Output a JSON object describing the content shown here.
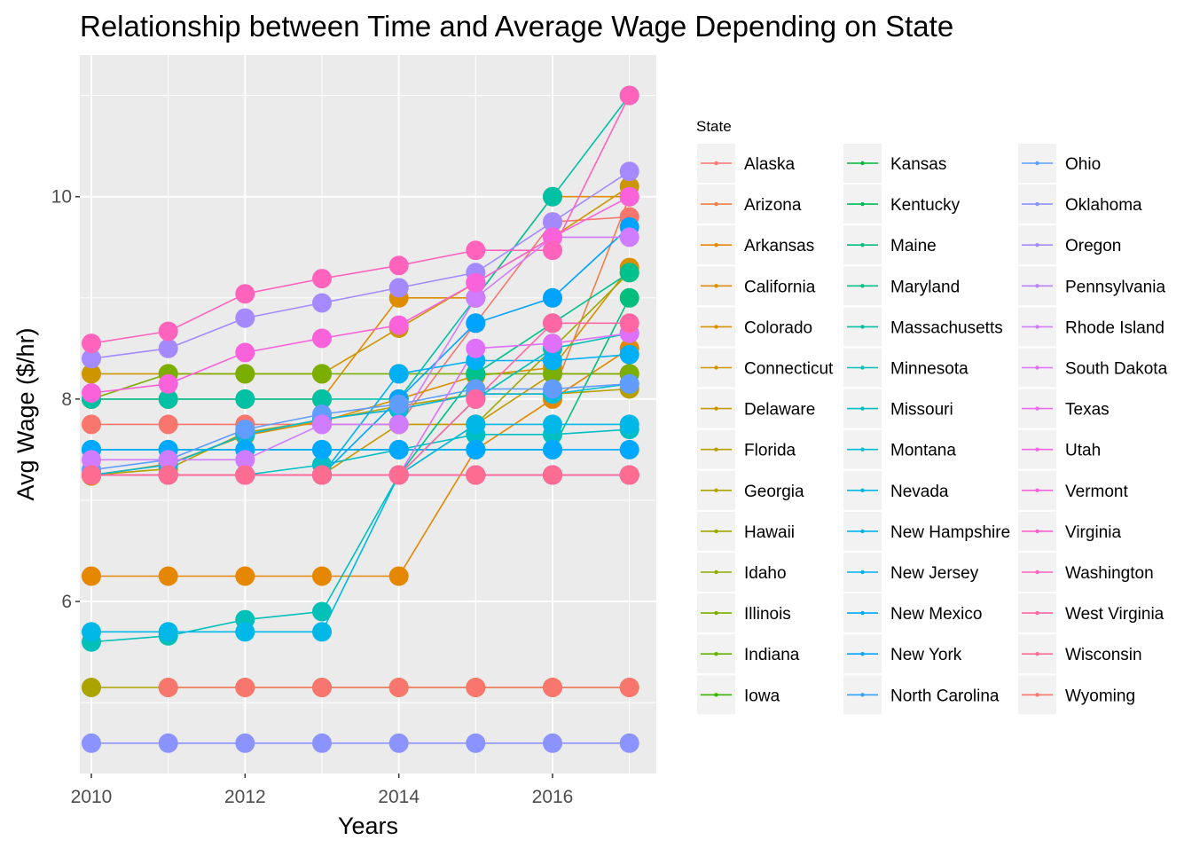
{
  "chart_data": {
    "type": "line",
    "title": "Relationship between Time and Average Wage Depending on State",
    "xlabel": "Years",
    "ylabel": "Avg Wage ($/hr)",
    "xlim": [
      2009.85,
      2017.35
    ],
    "ylim": [
      4.3,
      11.4
    ],
    "x_ticks": [
      2010,
      2012,
      2014,
      2016
    ],
    "y_ticks": [
      6,
      8,
      10
    ],
    "grid": true,
    "legend_title": "State",
    "legend_position": "right",
    "x": [
      2010,
      2011,
      2012,
      2013,
      2014,
      2015,
      2016,
      2017
    ],
    "series": [
      {
        "name": "Alaska",
        "color": "#F8766D",
        "values": [
          7.75,
          7.75,
          7.75,
          7.75,
          7.75,
          8.75,
          9.75,
          9.8
        ]
      },
      {
        "name": "Arizona",
        "color": "#EF7F49",
        "values": [
          7.25,
          7.35,
          7.65,
          7.8,
          7.9,
          8.05,
          8.05,
          10.0
        ]
      },
      {
        "name": "Arkansas",
        "color": "#E58700",
        "values": [
          6.25,
          6.25,
          6.25,
          6.25,
          6.25,
          7.5,
          8.0,
          8.5
        ]
      },
      {
        "name": "California",
        "color": "#DE8C00",
        "values": [
          8.0,
          8.0,
          8.0,
          8.0,
          9.0,
          9.0,
          10.0,
          10.0
        ]
      },
      {
        "name": "Colorado",
        "color": "#D89000",
        "values": [
          7.24,
          7.36,
          7.64,
          7.78,
          8.0,
          8.23,
          8.31,
          9.3
        ]
      },
      {
        "name": "Connecticut",
        "color": "#CD9600",
        "values": [
          8.25,
          8.25,
          8.25,
          8.25,
          8.7,
          9.15,
          9.6,
          10.1
        ]
      },
      {
        "name": "Delaware",
        "color": "#C49A00",
        "values": [
          7.25,
          7.25,
          7.25,
          7.25,
          7.75,
          7.75,
          8.25,
          8.25
        ]
      },
      {
        "name": "Florida",
        "color": "#B79F00",
        "values": [
          7.25,
          7.31,
          7.67,
          7.79,
          7.93,
          8.05,
          8.05,
          8.1
        ]
      },
      {
        "name": "Georgia",
        "color": "#ABA300",
        "values": [
          5.15,
          5.15,
          5.15,
          5.15,
          5.15,
          5.15,
          5.15,
          5.15
        ]
      },
      {
        "name": "Hawaii",
        "color": "#9DA700",
        "values": [
          7.25,
          7.25,
          7.25,
          7.25,
          7.25,
          7.75,
          8.5,
          9.25
        ]
      },
      {
        "name": "Idaho",
        "color": "#8EAB00",
        "values": [
          7.25,
          7.25,
          7.25,
          7.25,
          7.25,
          7.25,
          7.25,
          7.25
        ]
      },
      {
        "name": "Illinois",
        "color": "#7CAE00",
        "values": [
          8.0,
          8.25,
          8.25,
          8.25,
          8.25,
          8.25,
          8.25,
          8.25
        ]
      },
      {
        "name": "Indiana",
        "color": "#64B200",
        "values": [
          7.25,
          7.25,
          7.25,
          7.25,
          7.25,
          7.25,
          7.25,
          7.25
        ]
      },
      {
        "name": "Iowa",
        "color": "#39B600",
        "values": [
          7.25,
          7.25,
          7.25,
          7.25,
          7.25,
          7.25,
          7.25,
          7.25
        ]
      },
      {
        "name": "Kansas",
        "color": "#00BA38",
        "values": [
          7.25,
          7.25,
          7.25,
          7.25,
          7.25,
          7.25,
          7.25,
          7.25
        ]
      },
      {
        "name": "Kentucky",
        "color": "#00BC56",
        "values": [
          7.25,
          7.25,
          7.25,
          7.25,
          7.25,
          7.25,
          7.25,
          7.25
        ]
      },
      {
        "name": "Maine",
        "color": "#00BF7D",
        "values": [
          7.5,
          7.5,
          7.5,
          7.5,
          7.5,
          7.5,
          7.5,
          9.0
        ]
      },
      {
        "name": "Maryland",
        "color": "#00C08B",
        "values": [
          7.25,
          7.25,
          7.25,
          7.25,
          7.25,
          8.25,
          8.75,
          9.25
        ]
      },
      {
        "name": "Massachusetts",
        "color": "#00C1A3",
        "values": [
          8.0,
          8.0,
          8.0,
          8.0,
          8.0,
          9.0,
          10.0,
          11.0
        ]
      },
      {
        "name": "Minnesota",
        "color": "#00C0B8",
        "values": [
          5.6,
          5.66,
          5.82,
          5.9,
          7.25,
          8.0,
          8.5,
          8.65
        ]
      },
      {
        "name": "Missouri",
        "color": "#00BFC4",
        "values": [
          7.25,
          7.25,
          7.25,
          7.35,
          7.5,
          7.65,
          7.65,
          7.7
        ]
      },
      {
        "name": "Montana",
        "color": "#00BCD8",
        "values": [
          7.25,
          7.35,
          7.65,
          7.8,
          7.9,
          8.05,
          8.05,
          8.15
        ]
      },
      {
        "name": "Nevada",
        "color": "#00B8E7",
        "values": [
          5.7,
          5.7,
          5.7,
          5.7,
          7.25,
          7.75,
          7.75,
          7.75
        ]
      },
      {
        "name": "New Hampshire",
        "color": "#00B4EF",
        "values": [
          7.25,
          7.25,
          7.25,
          7.25,
          7.25,
          7.25,
          7.25,
          7.25
        ]
      },
      {
        "name": "New Jersey",
        "color": "#00B0F6",
        "values": [
          7.25,
          7.25,
          7.25,
          7.25,
          8.25,
          8.38,
          8.38,
          8.44
        ]
      },
      {
        "name": "New Mexico",
        "color": "#00A9FF",
        "values": [
          7.5,
          7.5,
          7.5,
          7.5,
          7.5,
          7.5,
          7.5,
          7.5
        ]
      },
      {
        "name": "New York",
        "color": "#00A3FF",
        "values": [
          7.25,
          7.25,
          7.25,
          7.25,
          8.0,
          8.75,
          9.0,
          9.7
        ]
      },
      {
        "name": "North Carolina",
        "color": "#35A2FF",
        "values": [
          7.25,
          7.25,
          7.25,
          7.25,
          7.25,
          7.25,
          7.25,
          7.25
        ]
      },
      {
        "name": "Ohio",
        "color": "#619CFF",
        "values": [
          7.3,
          7.4,
          7.7,
          7.85,
          7.95,
          8.1,
          8.1,
          8.15
        ]
      },
      {
        "name": "Oklahoma",
        "color": "#8B93FF",
        "values": [
          4.6,
          4.6,
          4.6,
          4.6,
          4.6,
          4.6,
          4.6,
          4.6
        ]
      },
      {
        "name": "Oregon",
        "color": "#A58AFF",
        "values": [
          8.4,
          8.5,
          8.8,
          8.95,
          9.1,
          9.25,
          9.75,
          10.25
        ]
      },
      {
        "name": "Pennsylvania",
        "color": "#B983FF",
        "values": [
          7.25,
          7.25,
          7.25,
          7.25,
          7.25,
          7.25,
          7.25,
          7.25
        ]
      },
      {
        "name": "Rhode Island",
        "color": "#CF7CFF",
        "values": [
          7.4,
          7.4,
          7.4,
          7.75,
          7.75,
          9.0,
          9.6,
          9.6
        ]
      },
      {
        "name": "South Dakota",
        "color": "#DF70F8",
        "values": [
          7.25,
          7.25,
          7.25,
          7.25,
          7.25,
          8.5,
          8.55,
          8.65
        ]
      },
      {
        "name": "Texas",
        "color": "#EA6AF1",
        "values": [
          7.25,
          7.25,
          7.25,
          7.25,
          7.25,
          7.25,
          7.25,
          7.25
        ]
      },
      {
        "name": "Utah",
        "color": "#F365E6",
        "values": [
          7.25,
          7.25,
          7.25,
          7.25,
          7.25,
          7.25,
          7.25,
          7.25
        ]
      },
      {
        "name": "Vermont",
        "color": "#FA62DB",
        "values": [
          8.06,
          8.15,
          8.46,
          8.6,
          8.73,
          9.15,
          9.6,
          10.0
        ]
      },
      {
        "name": "Virginia",
        "color": "#FF61CC",
        "values": [
          7.25,
          7.25,
          7.25,
          7.25,
          7.25,
          7.25,
          7.25,
          7.25
        ]
      },
      {
        "name": "Washington",
        "color": "#FF63BB",
        "values": [
          8.55,
          8.67,
          9.04,
          9.19,
          9.32,
          9.47,
          9.47,
          11.0
        ]
      },
      {
        "name": "West Virginia",
        "color": "#FF67A4",
        "values": [
          7.25,
          7.25,
          7.25,
          7.25,
          7.25,
          8.0,
          8.75,
          8.75
        ]
      },
      {
        "name": "Wisconsin",
        "color": "#FF6C91",
        "values": [
          7.25,
          7.25,
          7.25,
          7.25,
          7.25,
          7.25,
          7.25,
          7.25
        ]
      },
      {
        "name": "Wyoming",
        "color": "#F8766D",
        "values": [
          null,
          5.15,
          5.15,
          5.15,
          5.15,
          5.15,
          5.15,
          5.15
        ]
      }
    ]
  }
}
